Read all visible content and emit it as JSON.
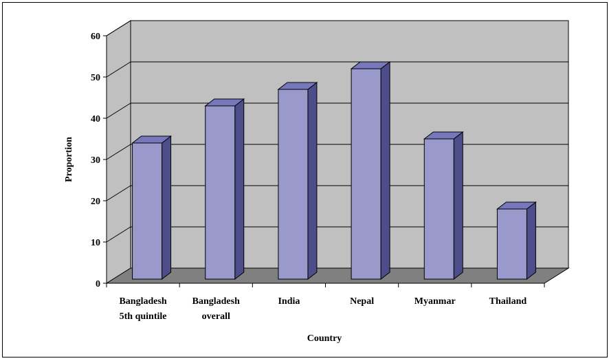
{
  "chart_data": {
    "type": "bar",
    "title": "",
    "xlabel": "Country",
    "ylabel": "Proportion",
    "categories": [
      [
        "Bangladesh",
        "5th quintile"
      ],
      [
        "Bangladesh",
        "overall"
      ],
      [
        "India"
      ],
      [
        "Nepal"
      ],
      [
        "Myanmar"
      ],
      [
        "Thailand"
      ]
    ],
    "values": [
      33,
      42,
      46,
      51,
      34,
      17
    ],
    "ylim": [
      0,
      60
    ],
    "yticks": [
      "0",
      "10",
      "20",
      "30",
      "40",
      "50",
      "60"
    ],
    "grid": true,
    "legend": "none",
    "colors": {
      "bar_front": "#9999cc",
      "bar_side": "#4d4d8a",
      "bar_top": "#7777bb",
      "back_wall": "#c0c0c0",
      "side_wall": "#c0c0c0",
      "floor": "#808080"
    }
  }
}
